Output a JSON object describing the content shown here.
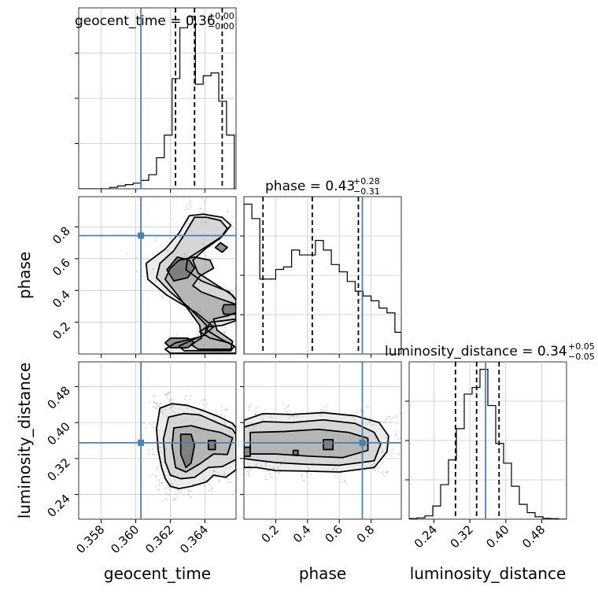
{
  "chart_data": {
    "type": "corner",
    "parameters": [
      {
        "key": "geocent_time",
        "label": "geocent_time",
        "range": [
          0.3567,
          0.3658
        ],
        "ticks": [
          0.358,
          0.36,
          0.362,
          0.364
        ],
        "tick_labels": [
          "0.358",
          "0.360",
          "0.362",
          "0.364"
        ]
      },
      {
        "key": "phase",
        "label": "phase",
        "range": [
          0.0,
          0.99
        ],
        "ticks": [
          0.2,
          0.4,
          0.6,
          0.8
        ],
        "tick_labels": [
          "0.2",
          "0.4",
          "0.6",
          "0.8"
        ]
      },
      {
        "key": "luminosity_distance",
        "label": "luminosity_distance",
        "range": [
          0.185,
          0.535
        ],
        "ticks": [
          0.24,
          0.32,
          0.4,
          0.48
        ],
        "tick_labels": [
          "0.24",
          "0.32",
          "0.40",
          "0.48"
        ]
      }
    ],
    "titles": [
      {
        "base": "geocent_time = 0.36",
        "sup": "+0.00",
        "sub": "−0.00"
      },
      {
        "base": "phase = 0.43",
        "sup": "+0.28",
        "sub": "−0.31"
      },
      {
        "base": "luminosity_distance = 0.34",
        "sup": "+0.05",
        "sub": "−0.05"
      }
    ],
    "truths": {
      "geocent_time": 0.3603,
      "phase": 0.745,
      "luminosity_distance": 0.355
    },
    "quantiles": {
      "geocent_time": [
        0.3623,
        0.3634,
        0.365
      ],
      "phase": [
        0.12,
        0.43,
        0.72
      ],
      "luminosity_distance": [
        0.288,
        0.335,
        0.385
      ]
    },
    "histograms": {
      "geocent_time": {
        "bin_edges": [
          0.3567,
          0.35715,
          0.3576,
          0.35805,
          0.3585,
          0.35895,
          0.3594,
          0.35985,
          0.3603,
          0.36075,
          0.3612,
          0.36165,
          0.3621,
          0.36255,
          0.363,
          0.36345,
          0.3639,
          0.36435,
          0.3648,
          0.36525,
          0.3657
        ],
        "counts": [
          0,
          0,
          0,
          0,
          0.5,
          1,
          1.5,
          2,
          3,
          5,
          11,
          19,
          39,
          57,
          61,
          37,
          40,
          41,
          31,
          19
        ]
      },
      "phase": {
        "bin_edges": [
          0.0,
          0.05,
          0.1,
          0.15,
          0.2,
          0.25,
          0.3,
          0.35,
          0.4,
          0.45,
          0.5,
          0.55,
          0.6,
          0.65,
          0.7,
          0.75,
          0.8,
          0.85,
          0.9,
          0.95,
          0.99
        ],
        "counts": [
          62,
          56,
          31,
          31,
          35,
          36,
          43,
          41,
          41,
          47,
          43,
          37,
          34,
          30,
          26,
          24,
          22,
          19,
          17,
          9
        ]
      },
      "luminosity_distance": {
        "bin_edges": [
          0.185,
          0.2025,
          0.22,
          0.2375,
          0.255,
          0.2725,
          0.29,
          0.3075,
          0.325,
          0.3425,
          0.36,
          0.3775,
          0.395,
          0.4125,
          0.43,
          0.4475,
          0.465,
          0.4825,
          0.5,
          0.5175,
          0.535
        ],
        "counts": [
          0.4,
          0.8,
          2,
          8,
          21,
          36,
          55,
          76,
          80,
          91,
          69,
          46,
          34,
          20,
          9,
          4,
          1.5,
          0.5,
          0.3,
          0
        ]
      }
    },
    "contours": {
      "phase_vs_geocent_time": [
        {
          "x": [
            0.3631,
            0.3639,
            0.365,
            0.3655,
            0.365,
            0.364,
            0.363,
            0.3629,
            0.3638,
            0.3654,
            0.3658,
            0.3658,
            0.365,
            0.3641,
            0.3637,
            0.3643,
            0.3654,
            0.3658,
            0.3658,
            0.3648,
            0.3633,
            0.362,
            0.3617,
            0.3623,
            0.3638,
            0.3645,
            0.3635,
            0.3618,
            0.3607,
            0.3606,
            0.3617,
            0.3625,
            0.3631
          ],
          "y": [
            0.87,
            0.88,
            0.86,
            0.81,
            0.74,
            0.67,
            0.6,
            0.53,
            0.46,
            0.39,
            0.34,
            0.21,
            0.18,
            0.17,
            0.14,
            0.1,
            0.07,
            0.04,
            0.005,
            0.005,
            0.005,
            0.005,
            0.03,
            0.07,
            0.11,
            0.17,
            0.26,
            0.37,
            0.47,
            0.57,
            0.66,
            0.76,
            0.87
          ]
        },
        {
          "x": [
            0.3634,
            0.3641,
            0.3649,
            0.3653,
            0.3649,
            0.364,
            0.3633,
            0.3636,
            0.3646,
            0.3656,
            0.3658,
            0.3658,
            0.3651,
            0.3643,
            0.3641,
            0.365,
            0.3657,
            0.3655,
            0.364,
            0.3628,
            0.3625,
            0.3631,
            0.364,
            0.3641,
            0.3631,
            0.362,
            0.3612,
            0.3614,
            0.3622,
            0.3628,
            0.3634
          ],
          "y": [
            0.86,
            0.86,
            0.84,
            0.79,
            0.73,
            0.66,
            0.59,
            0.51,
            0.44,
            0.37,
            0.34,
            0.22,
            0.21,
            0.2,
            0.15,
            0.09,
            0.05,
            0.02,
            0.02,
            0.02,
            0.05,
            0.08,
            0.12,
            0.18,
            0.29,
            0.39,
            0.48,
            0.57,
            0.65,
            0.75,
            0.86
          ]
        },
        {
          "x": [
            0.3634,
            0.3643,
            0.3645,
            0.3637,
            0.3633,
            0.3638,
            0.3648,
            0.3656,
            0.3658,
            0.3658,
            0.3653,
            0.3645,
            0.3647,
            0.3656,
            0.3655,
            0.3636,
            0.3632,
            0.3638,
            0.3637,
            0.3625,
            0.3617,
            0.362,
            0.3625,
            0.3634
          ],
          "y": [
            0.61,
            0.59,
            0.54,
            0.49,
            0.43,
            0.39,
            0.35,
            0.32,
            0.31,
            0.26,
            0.24,
            0.22,
            0.15,
            0.08,
            0.03,
            0.03,
            0.06,
            0.1,
            0.18,
            0.36,
            0.47,
            0.54,
            0.59,
            0.61
          ]
        },
        {
          "x": [
            0.3624,
            0.3631,
            0.3634,
            0.363,
            0.3622,
            0.3618,
            0.3624
          ],
          "y": [
            0.61,
            0.59,
            0.54,
            0.48,
            0.46,
            0.53,
            0.61
          ]
        },
        {
          "x": [
            0.3649,
            0.3653,
            0.365,
            0.3646,
            0.3649
          ],
          "y": [
            0.7,
            0.67,
            0.64,
            0.67,
            0.7
          ]
        },
        {
          "x": [
            0.3651,
            0.3658,
            0.3658,
            0.3651,
            0.365,
            0.3651
          ],
          "y": [
            0.31,
            0.31,
            0.25,
            0.25,
            0.28,
            0.31
          ]
        },
        {
          "x": [
            0.362,
            0.363,
            0.3634,
            0.363,
            0.362,
            0.3617,
            0.362
          ],
          "y": [
            0.1,
            0.1,
            0.07,
            0.04,
            0.04,
            0.07,
            0.1
          ]
        }
      ],
      "luminosity_distance_vs_geocent_time": [
        {
          "x": [
            0.3614,
            0.3621,
            0.363,
            0.3638,
            0.3648,
            0.3656,
            0.3658,
            0.3658,
            0.3652,
            0.3645,
            0.3641,
            0.3632,
            0.3625,
            0.362,
            0.3617,
            0.3615,
            0.3613,
            0.3612,
            0.3614
          ],
          "y": [
            0.432,
            0.442,
            0.438,
            0.428,
            0.413,
            0.398,
            0.388,
            0.295,
            0.278,
            0.283,
            0.268,
            0.258,
            0.253,
            0.258,
            0.276,
            0.299,
            0.338,
            0.386,
            0.432
          ]
        },
        {
          "x": [
            0.3619,
            0.3628,
            0.3637,
            0.3647,
            0.3656,
            0.3658,
            0.3658,
            0.365,
            0.3642,
            0.3634,
            0.3626,
            0.362,
            0.3617,
            0.3616,
            0.3619
          ],
          "y": [
            0.412,
            0.42,
            0.417,
            0.4,
            0.385,
            0.373,
            0.318,
            0.302,
            0.3,
            0.278,
            0.275,
            0.283,
            0.313,
            0.363,
            0.412
          ]
        },
        {
          "x": [
            0.3622,
            0.3632,
            0.364,
            0.3649,
            0.3656,
            0.3653,
            0.3645,
            0.3637,
            0.3629,
            0.3623,
            0.3621,
            0.3622
          ],
          "y": [
            0.388,
            0.393,
            0.385,
            0.378,
            0.366,
            0.329,
            0.33,
            0.308,
            0.29,
            0.3,
            0.348,
            0.388
          ]
        },
        {
          "x": [
            0.3626,
            0.3632,
            0.3634,
            0.3632,
            0.3629,
            0.3626,
            0.3626
          ],
          "y": [
            0.374,
            0.374,
            0.35,
            0.31,
            0.3,
            0.33,
            0.374
          ]
        },
        {
          "x": [
            0.3642,
            0.3646,
            0.3646,
            0.3642,
            0.3642
          ],
          "y": [
            0.36,
            0.36,
            0.34,
            0.34,
            0.36
          ]
        }
      ],
      "luminosity_distance_vs_phase": [
        {
          "x": [
            0.0,
            0.12,
            0.3,
            0.5,
            0.7,
            0.85,
            0.91,
            0.9,
            0.82,
            0.6,
            0.4,
            0.2,
            0.08,
            0.0
          ],
          "y": [
            0.405,
            0.42,
            0.418,
            0.422,
            0.415,
            0.4,
            0.37,
            0.335,
            0.3,
            0.29,
            0.292,
            0.293,
            0.3,
            0.3
          ]
        },
        {
          "x": [
            0.0,
            0.12,
            0.3,
            0.5,
            0.7,
            0.82,
            0.86,
            0.82,
            0.6,
            0.4,
            0.2,
            0.08,
            0.0
          ],
          "y": [
            0.39,
            0.402,
            0.4,
            0.406,
            0.398,
            0.378,
            0.352,
            0.315,
            0.305,
            0.307,
            0.311,
            0.316,
            0.32
          ]
        },
        {
          "x": [
            0.04,
            0.25,
            0.47,
            0.66,
            0.78,
            0.78,
            0.62,
            0.42,
            0.2,
            0.04,
            0.04
          ],
          "y": [
            0.378,
            0.38,
            0.385,
            0.378,
            0.365,
            0.338,
            0.322,
            0.325,
            0.33,
            0.33,
            0.378
          ]
        },
        {
          "x": [
            0.0,
            0.04,
            0.04,
            0.0
          ],
          "y": [
            0.345,
            0.345,
            0.325,
            0.325
          ]
        },
        {
          "x": [
            0.5,
            0.56,
            0.56,
            0.5,
            0.5
          ],
          "y": [
            0.362,
            0.362,
            0.34,
            0.34,
            0.362
          ]
        },
        {
          "x": [
            0.31,
            0.34,
            0.34,
            0.31,
            0.31
          ],
          "y": [
            0.338,
            0.338,
            0.328,
            0.328,
            0.338
          ]
        }
      ]
    },
    "colors": {
      "truth": "#4682b4",
      "hist": "#000000",
      "contour": "#000000",
      "grid": "#c8c8c8",
      "scatter": "#8c8c8c"
    }
  }
}
